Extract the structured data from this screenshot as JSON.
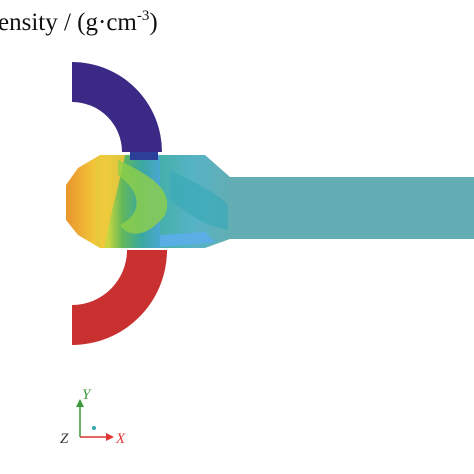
{
  "title": {
    "text": "ensity / (g·cm",
    "superscript": "-3",
    "close": ")"
  },
  "axes": {
    "y": "Y",
    "z": "Z",
    "x": "X"
  }
}
